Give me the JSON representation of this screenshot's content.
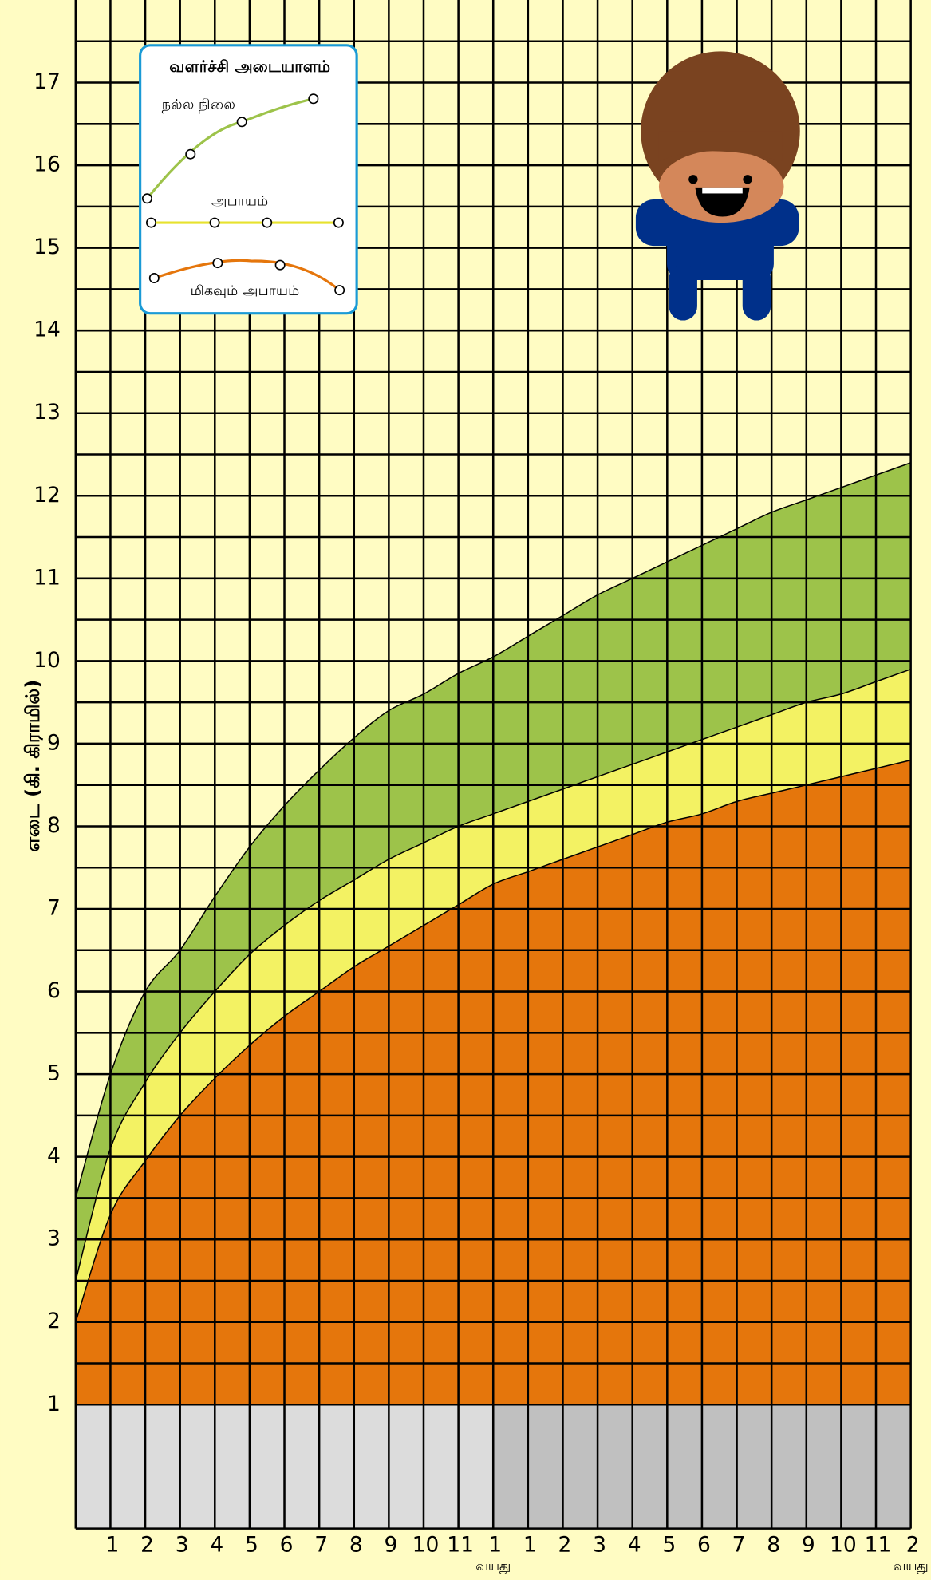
{
  "chart_data": {
    "type": "area-band",
    "y_label": "எடை  (கி. கிராமில்)",
    "legend_title": "வளர்ச்சி அடையாளம்",
    "x": [
      0,
      1,
      2,
      3,
      4,
      5,
      6,
      7,
      8,
      9,
      10,
      11,
      12,
      13,
      14,
      15,
      16,
      17,
      18,
      19,
      20,
      21,
      22,
      23,
      24
    ],
    "series": [
      {
        "name": "மிகவும் அபாயம்",
        "color": "#e5760c",
        "values": [
          2.0,
          3.3,
          3.95,
          4.5,
          4.95,
          5.35,
          5.7,
          6.0,
          6.3,
          6.55,
          6.8,
          7.05,
          7.3,
          7.45,
          7.6,
          7.75,
          7.9,
          8.05,
          8.15,
          8.3,
          8.4,
          8.5,
          8.6,
          8.7,
          8.8
        ]
      },
      {
        "name": "அபாயம்",
        "color": "#f3f263",
        "values": [
          2.5,
          4.1,
          4.9,
          5.5,
          6.0,
          6.45,
          6.8,
          7.1,
          7.35,
          7.6,
          7.8,
          8.0,
          8.15,
          8.3,
          8.45,
          8.6,
          8.75,
          8.9,
          9.05,
          9.2,
          9.35,
          9.5,
          9.6,
          9.75,
          9.9
        ]
      },
      {
        "name": "நல்ல நிலை",
        "color": "#9dc34a",
        "values": [
          3.5,
          5.0,
          6.0,
          6.5,
          7.15,
          7.75,
          8.25,
          8.68,
          9.07,
          9.4,
          9.6,
          9.85,
          10.05,
          10.3,
          10.55,
          10.8,
          11.0,
          11.2,
          11.4,
          11.6,
          11.8,
          11.95,
          12.1,
          12.25,
          12.4
        ]
      }
    ],
    "xlim": [
      0,
      24
    ],
    "xticks": [
      1,
      2,
      3,
      4,
      5,
      6,
      7,
      8,
      9,
      10,
      11,
      {
        "value": 12,
        "label": "1"
      },
      {
        "value": 13,
        "label": "1"
      },
      {
        "value": 14,
        "label": "2"
      },
      {
        "value": 15,
        "label": "3"
      },
      {
        "value": 16,
        "label": "4"
      },
      {
        "value": 17,
        "label": "5"
      },
      {
        "value": 18,
        "label": "6"
      },
      {
        "value": 19,
        "label": "7"
      },
      {
        "value": 20,
        "label": "8"
      },
      {
        "value": 21,
        "label": "9"
      },
      {
        "value": 22,
        "label": "10"
      },
      {
        "value": 23,
        "label": "11"
      },
      {
        "value": 24,
        "label": "2"
      }
    ],
    "age_labels": [
      "வயது",
      "வயது"
    ],
    "ylim": [
      -0.5,
      18
    ],
    "yticks": [
      1,
      2,
      3,
      4,
      5,
      6,
      7,
      8,
      9,
      10,
      11,
      12,
      13,
      14,
      15,
      16,
      17
    ],
    "grid": true
  }
}
